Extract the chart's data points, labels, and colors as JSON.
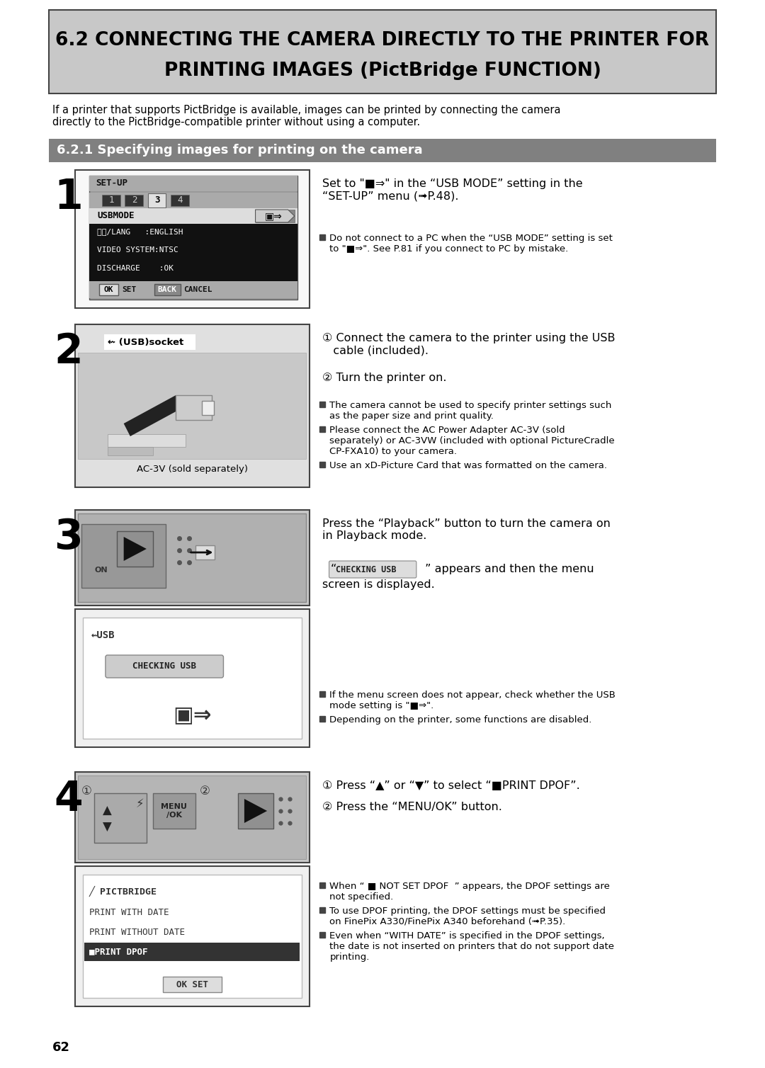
{
  "bg_color": "#ffffff",
  "header": {
    "text_line1": "6.2 CONNECTING THE CAMERA DIRECTLY TO THE PRINTER FOR",
    "text_line2": "PRINTING IMAGES (PictBridge FUNCTION)",
    "bg_color": "#c8c8c8",
    "text_color": "#000000",
    "border_color": "#555555"
  },
  "intro_text": "If a printer that supports PictBridge is available, images can be printed by connecting the camera\ndirectly to the PictBridge-compatible printer without using a computer.",
  "section_header": {
    "text": "6.2.1 Specifying images for printing on the camera",
    "bg_color": "#808080",
    "text_color": "#ffffff"
  },
  "step1": {
    "number": "1",
    "main_text": "Set to \"■⇒\" in the “USB MODE” setting in the\n“SET-UP” menu (➟P.48).",
    "note_text": "Do not connect to a PC when the “USB MODE” setting is set\nto \"■⇒\". See P.81 if you connect to PC by mistake."
  },
  "step2": {
    "number": "2",
    "main_text1": "① Connect the camera to the printer using the USB\n   cable (included).",
    "main_text2": "② Turn the printer on.",
    "note_text1": "The camera cannot be used to specify printer settings such\nas the paper size and print quality.",
    "note_text2": "Please connect the AC Power Adapter AC-3V (sold\nseparately) or AC-3VW (included with optional PictureCradle\nCP-FXA10) to your camera.",
    "note_text3": "Use an xD-Picture Card that was formatted on the camera."
  },
  "step3": {
    "number": "3",
    "main_text1": "Press the “Playback” button to turn the camera on\nin Playback mode.",
    "main_text2_pre": "“",
    "main_text2_box": "CHECKING USB",
    "main_text2_post": " ” appears and then the menu\nscreen is displayed.",
    "note_text1": "If the menu screen does not appear, check whether the USB\nmode setting is \"■⇒\".",
    "note_text2": "Depending on the printer, some functions are disabled."
  },
  "step4": {
    "number": "4",
    "main_text1": "① Press “▲” or “▼” to select “■PRINT DPOF”.",
    "main_text2": "② Press the “MENU/OK” button.",
    "note_text1": "When “ ■ NOT SET DPOF  ” appears, the DPOF settings are\nnot specified.",
    "note_text2": "To use DPOF printing, the DPOF settings must be specified\non FinePix A330/FinePix A340 beforehand (➟P.35).",
    "note_text3": "Even when “WITH DATE” is specified in the DPOF settings,\nthe date is not inserted on printers that do not support date\nprinting."
  },
  "footer_page": "62"
}
